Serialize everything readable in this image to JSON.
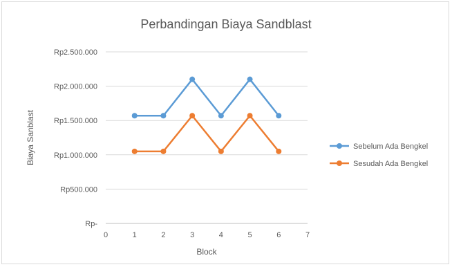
{
  "chart_data": {
    "type": "line",
    "title": "Perbandingan Biaya Sandblast",
    "xlabel": "Block",
    "ylabel": "Biaya Sanblast",
    "x": [
      1,
      2,
      3,
      4,
      5,
      6
    ],
    "xlim": [
      0,
      7
    ],
    "x_ticks": [
      "0",
      "1",
      "2",
      "3",
      "4",
      "5",
      "6",
      "7"
    ],
    "ylim": [
      0,
      2500000
    ],
    "y_ticks": [
      "Rp-",
      "Rp500.000",
      "Rp1.000.000",
      "Rp1.500.000",
      "Rp2.000.000",
      "Rp2.500.000"
    ],
    "grid": true,
    "legend_position": "right",
    "series": [
      {
        "name": "Sebelum Ada Bengkel",
        "color": "#5b9bd5",
        "values": [
          1570000,
          1570000,
          2100000,
          1570000,
          2100000,
          1570000
        ]
      },
      {
        "name": "Sesudah Ada Bengkel",
        "color": "#ed7d31",
        "values": [
          1050000,
          1050000,
          1570000,
          1050000,
          1570000,
          1050000
        ]
      }
    ]
  }
}
